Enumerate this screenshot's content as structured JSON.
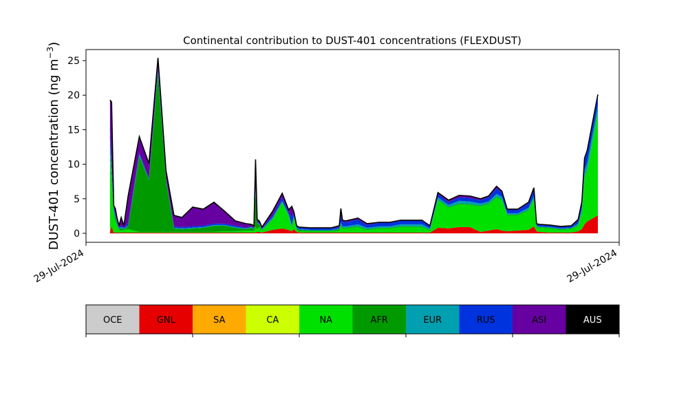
{
  "chart_data": {
    "type": "area",
    "stacked": true,
    "title": "Continental contribution to DUST-401 concentrations (FLEXDUST)",
    "ylabel_main": "DUST-401 concentration (ng m",
    "ylabel_sup": "−3",
    "ylabel_close": ")",
    "xlabel": "",
    "ylim": [
      -1.3,
      26.6
    ],
    "yticks": [
      0,
      5,
      10,
      15,
      20,
      25
    ],
    "xticks": [
      {
        "t": 0.0,
        "label": "29-Jul-2024"
      },
      {
        "t": 1.0,
        "label": "29-Jul-2024"
      }
    ],
    "x": [
      0.045,
      0.048,
      0.052,
      0.055,
      0.058,
      0.062,
      0.066,
      0.071,
      0.079,
      0.1,
      0.118,
      0.135,
      0.15,
      0.165,
      0.18,
      0.2,
      0.22,
      0.24,
      0.26,
      0.28,
      0.3,
      0.31,
      0.315,
      0.318,
      0.321,
      0.325,
      0.33,
      0.35,
      0.368,
      0.38,
      0.386,
      0.39,
      0.395,
      0.4,
      0.42,
      0.44,
      0.46,
      0.475,
      0.478,
      0.481,
      0.487,
      0.51,
      0.527,
      0.55,
      0.57,
      0.59,
      0.61,
      0.63,
      0.645,
      0.66,
      0.68,
      0.7,
      0.72,
      0.74,
      0.755,
      0.77,
      0.78,
      0.79,
      0.81,
      0.83,
      0.84,
      0.845,
      0.85,
      0.87,
      0.89,
      0.91,
      0.923,
      0.93,
      0.935,
      0.94,
      0.96
    ],
    "series": [
      {
        "name": "OCE",
        "color": "#cccccc",
        "values": [
          0,
          0,
          0,
          0,
          0,
          0,
          0,
          0,
          0,
          0,
          0,
          0,
          0,
          0,
          0,
          0,
          0,
          0,
          0,
          0,
          0,
          0,
          0,
          0,
          0,
          0,
          0,
          0,
          0,
          0,
          0,
          0,
          0,
          0,
          0,
          0,
          0,
          0,
          0,
          0,
          0,
          0,
          0,
          0,
          0,
          0,
          0,
          0,
          0,
          0,
          0,
          0,
          0,
          0,
          0,
          0,
          0,
          0,
          0,
          0,
          0,
          0,
          0,
          0,
          0,
          0,
          0,
          0,
          0,
          0,
          0
        ]
      },
      {
        "name": "GNL",
        "color": "#e60000",
        "values": [
          0.2,
          1.0,
          0.1,
          0.1,
          0.1,
          0.1,
          0.1,
          0.1,
          0.1,
          0.1,
          0.1,
          0.1,
          0.1,
          0.1,
          0.1,
          0.1,
          0.1,
          0.1,
          0.1,
          0.1,
          0.1,
          0.1,
          0.1,
          0.1,
          0.2,
          0.2,
          0.1,
          0.5,
          0.7,
          0.5,
          0.3,
          0.6,
          0.2,
          0.1,
          0.1,
          0.1,
          0.1,
          0.1,
          0.1,
          0.1,
          0.1,
          0.1,
          0.1,
          0.1,
          0.1,
          0.1,
          0.1,
          0.1,
          0.1,
          0.8,
          0.7,
          0.9,
          0.9,
          0.2,
          0.4,
          0.6,
          0.4,
          0.3,
          0.4,
          0.5,
          1.0,
          0.3,
          0.2,
          0.1,
          0.1,
          0.1,
          0.3,
          0.6,
          1.3,
          1.7,
          2.6
        ]
      },
      {
        "name": "SA",
        "color": "#ffaa00",
        "values": [
          0,
          0,
          0,
          0,
          0,
          0,
          0,
          0,
          0,
          0,
          0,
          0,
          0,
          0,
          0,
          0,
          0,
          0,
          0,
          0,
          0,
          0,
          0,
          0,
          0,
          0,
          0,
          0,
          0,
          0,
          0,
          0,
          0,
          0,
          0,
          0,
          0,
          0,
          0,
          0,
          0,
          0,
          0,
          0,
          0,
          0,
          0,
          0,
          0,
          0,
          0,
          0,
          0,
          0,
          0,
          0,
          0,
          0,
          0,
          0,
          0,
          0,
          0,
          0,
          0,
          0,
          0,
          0,
          0,
          0,
          0
        ]
      },
      {
        "name": "CA",
        "color": "#ccff00",
        "values": [
          0,
          0,
          0,
          0,
          0,
          0,
          0,
          0,
          0,
          0,
          0,
          0,
          0,
          0,
          0,
          0,
          0,
          0,
          0,
          0,
          0,
          0,
          0,
          0,
          0,
          0,
          0,
          0,
          0,
          0,
          0,
          0,
          0,
          0,
          0,
          0,
          0,
          0,
          0,
          0,
          0,
          0,
          0,
          0,
          0,
          0,
          0,
          0,
          0,
          0,
          0,
          0,
          0,
          0,
          0,
          0,
          0,
          0,
          0,
          0,
          0,
          0,
          0,
          0,
          0,
          0,
          0,
          0,
          0,
          0,
          0
        ]
      },
      {
        "name": "NA",
        "color": "#00e000",
        "values": [
          11.6,
          6.4,
          2.7,
          1.7,
          1.0,
          0.4,
          0.3,
          0.4,
          0.5,
          0.1,
          0.1,
          0.1,
          0.1,
          0.1,
          0.1,
          0.1,
          0.1,
          0.1,
          0.2,
          0.2,
          0.3,
          0.3,
          0.3,
          0.8,
          0.4,
          0.7,
          0.3,
          1.5,
          3.7,
          2.0,
          0.4,
          1.6,
          0.3,
          0.2,
          0.2,
          0.2,
          0.2,
          0.3,
          0.9,
          0.6,
          0.6,
          0.8,
          0.4,
          0.6,
          0.6,
          0.8,
          0.8,
          0.8,
          0.3,
          4.0,
          3.0,
          3.3,
          3.2,
          3.7,
          3.8,
          4.6,
          4.4,
          2.3,
          2.2,
          2.8,
          3.9,
          0.6,
          0.6,
          0.6,
          0.4,
          0.5,
          0.8,
          2.3,
          6.8,
          7.4,
          14.9
        ]
      },
      {
        "name": "AFR",
        "color": "#009a00",
        "values": [
          0.6,
          1.0,
          0.3,
          0.5,
          0.3,
          0.1,
          0.3,
          0.1,
          0.4,
          11.0,
          7.5,
          23.0,
          7.5,
          0.5,
          0.4,
          0.5,
          0.6,
          0.9,
          0.8,
          0.5,
          0.2,
          0.4,
          0.2,
          5.0,
          0.8,
          0.4,
          0.1,
          0.1,
          0.1,
          0.1,
          0.2,
          0.2,
          0.2,
          0.2,
          0.1,
          0.1,
          0.1,
          0.2,
          0.3,
          0.1,
          0.1,
          0.1,
          0.1,
          0.1,
          0.1,
          0.1,
          0.1,
          0.1,
          0.1,
          0.1,
          0.1,
          0.1,
          0.1,
          0.1,
          0.1,
          0.1,
          0.1,
          0.1,
          0.1,
          0.1,
          0.1,
          0.1,
          0.1,
          0.1,
          0.1,
          0.1,
          0.1,
          0.1,
          0.1,
          0.1,
          0.1
        ]
      },
      {
        "name": "EUR",
        "color": "#00a0b0",
        "values": [
          1.2,
          0.8,
          0.3,
          0.3,
          0.2,
          0.1,
          0.2,
          0.1,
          0.1,
          0.2,
          0.1,
          0.3,
          0.1,
          0.1,
          0.1,
          0.1,
          0.1,
          0.1,
          0.1,
          0.1,
          0.1,
          0.1,
          0.1,
          0.3,
          0.1,
          0.1,
          0.1,
          0.2,
          0.2,
          0.2,
          0.3,
          0.2,
          0.1,
          0.1,
          0.1,
          0.1,
          0.1,
          0.1,
          0.3,
          0.2,
          0.2,
          0.3,
          0.2,
          0.2,
          0.2,
          0.3,
          0.3,
          0.3,
          0.2,
          0.3,
          0.3,
          0.4,
          0.4,
          0.3,
          0.3,
          0.4,
          0.4,
          0.2,
          0.2,
          0.3,
          0.4,
          0.1,
          0.1,
          0.1,
          0.1,
          0.1,
          0.2,
          0.6,
          1.0,
          1.0,
          0.9
        ]
      },
      {
        "name": "RUS",
        "color": "#0033dd",
        "values": [
          1.5,
          1.2,
          0.4,
          0.3,
          0.2,
          0.1,
          0.2,
          0.1,
          0.4,
          0.3,
          0.2,
          0.4,
          0.2,
          0.2,
          0.2,
          0.2,
          0.2,
          0.2,
          0.2,
          0.2,
          0.1,
          0.1,
          0.1,
          0.6,
          0.1,
          0.1,
          0.1,
          0.3,
          0.5,
          0.3,
          1.2,
          0.3,
          0.2,
          0.2,
          0.2,
          0.2,
          0.2,
          0.2,
          0.8,
          0.7,
          0.6,
          0.7,
          0.4,
          0.5,
          0.5,
          0.5,
          0.5,
          0.5,
          0.3,
          0.5,
          0.4,
          0.5,
          0.5,
          0.5,
          0.6,
          0.8,
          0.6,
          0.5,
          0.5,
          0.6,
          0.9,
          0.2,
          0.2,
          0.2,
          0.2,
          0.2,
          0.4,
          0.8,
          1.4,
          1.5,
          1.2
        ]
      },
      {
        "name": "ASI",
        "color": "#6600a0",
        "values": [
          4.0,
          8.4,
          0.2,
          0.6,
          0.5,
          0.3,
          1.2,
          0.3,
          3.9,
          2.2,
          2.0,
          1.4,
          1.0,
          1.5,
          1.4,
          2.7,
          2.3,
          3.0,
          1.7,
          0.7,
          0.6,
          0.3,
          0.3,
          3.8,
          0.4,
          0.3,
          0.2,
          0.5,
          0.5,
          0.3,
          1.4,
          0.2,
          0.1,
          0.1,
          0.1,
          0.1,
          0.1,
          0.2,
          1.2,
          0.2,
          0.2,
          0.2,
          0.2,
          0.1,
          0.1,
          0.1,
          0.1,
          0.1,
          0.1,
          0.2,
          0.3,
          0.3,
          0.3,
          0.2,
          0.2,
          0.3,
          0.2,
          0.1,
          0.1,
          0.2,
          0.3,
          0.1,
          0.1,
          0.1,
          0.1,
          0.1,
          0.2,
          0.2,
          0.3,
          0.3,
          0.3
        ]
      },
      {
        "name": "AUS",
        "color": "#000000",
        "values": [
          0.2,
          0.2,
          0.0,
          0.1,
          0.0,
          0.0,
          0.0,
          0.0,
          0.0,
          0.1,
          0.1,
          0.1,
          0.1,
          0.1,
          0.0,
          0.1,
          0.1,
          0.1,
          0.1,
          0.0,
          0.0,
          0.0,
          0.0,
          0.1,
          0.0,
          0.0,
          0.0,
          0.1,
          0.1,
          0.0,
          0.1,
          0.0,
          0.0,
          0.0,
          0.0,
          0.0,
          0.0,
          0.0,
          0.0,
          0.0,
          0.0,
          0.0,
          0.0,
          0.0,
          0.0,
          0.0,
          0.0,
          0.0,
          0.0,
          0.0,
          0.0,
          0.0,
          0.0,
          0.0,
          0.0,
          0.0,
          0.0,
          0.0,
          0.0,
          0.0,
          0.0,
          0.0,
          0.0,
          0.0,
          0.0,
          0.0,
          0.0,
          0.0,
          0.0,
          0.0,
          0.1
        ]
      }
    ],
    "legend_placement": "bottom-colorbar",
    "grid": false
  },
  "colorbar": {
    "labels": [
      "OCE",
      "GNL",
      "SA",
      "CA",
      "NA",
      "AFR",
      "EUR",
      "RUS",
      "ASI",
      "AUS"
    ],
    "colors": [
      "#cccccc",
      "#e60000",
      "#ffaa00",
      "#ccff00",
      "#00e000",
      "#009a00",
      "#00a0b0",
      "#0033dd",
      "#6600a0",
      "#000000"
    ],
    "label_colors": [
      "#000000",
      "#000000",
      "#000000",
      "#000000",
      "#000000",
      "#000000",
      "#000000",
      "#000000",
      "#000000",
      "#ffffff"
    ]
  }
}
